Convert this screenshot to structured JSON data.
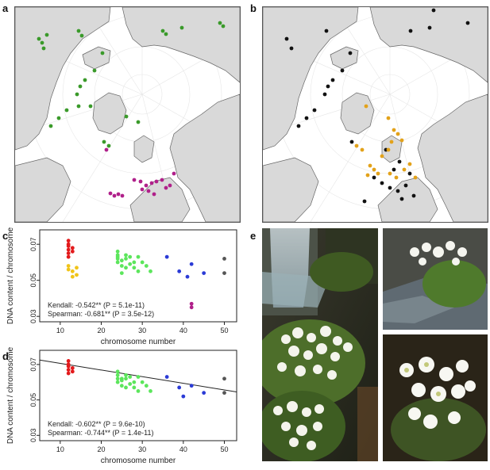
{
  "panels": {
    "a": "a",
    "b": "b",
    "c": "c",
    "d": "d",
    "e": "e"
  },
  "colors": {
    "land": "#d9d9d9",
    "ocean": "#ffffff",
    "green_points": "#3a9a2a",
    "magenta_points": "#b0208a",
    "black_points": "#111111",
    "orange_points": "#e3a21a",
    "red": "#e31a1c",
    "yellow": "#f0c419",
    "lime": "#5ce65c",
    "blue": "#2b3bd6",
    "grey": "#555555"
  },
  "chart_data": [
    {
      "panel": "c",
      "type": "scatter",
      "xlabel": "chromosome number",
      "ylabel": "DNA content / chromosome",
      "xlim": [
        5,
        53
      ],
      "ylim": [
        0.027,
        0.078
      ],
      "xticks": [
        "10",
        "20",
        "30",
        "40",
        "50"
      ],
      "yticks": [
        "0.03",
        "0.05",
        "0.07"
      ],
      "series": [
        {
          "color": "#e31a1c",
          "points": [
            [
              12,
              0.072
            ],
            [
              12,
              0.069
            ],
            [
              12,
              0.067
            ],
            [
              12,
              0.065
            ],
            [
              12,
              0.063
            ],
            [
              13,
              0.068
            ],
            [
              13,
              0.066
            ],
            [
              12,
              0.07
            ]
          ]
        },
        {
          "color": "#f0c419",
          "points": [
            [
              12,
              0.058
            ],
            [
              13,
              0.055
            ],
            [
              13,
              0.052
            ],
            [
              12,
              0.056
            ],
            [
              14,
              0.053
            ],
            [
              14,
              0.057
            ]
          ]
        },
        {
          "color": "#5ce65c",
          "points": [
            [
              24,
              0.066
            ],
            [
              24,
              0.064
            ],
            [
              24,
              0.062
            ],
            [
              25,
              0.061
            ],
            [
              26,
              0.064
            ],
            [
              26,
              0.062
            ],
            [
              27,
              0.063
            ],
            [
              28,
              0.06
            ],
            [
              29,
              0.063
            ],
            [
              24,
              0.06
            ],
            [
              25,
              0.058
            ],
            [
              26,
              0.057
            ],
            [
              27,
              0.059
            ],
            [
              28,
              0.057
            ],
            [
              30,
              0.06
            ],
            [
              31,
              0.058
            ],
            [
              32,
              0.055
            ],
            [
              29,
              0.055
            ],
            [
              25,
              0.054
            ],
            [
              24,
              0.063
            ]
          ]
        },
        {
          "color": "#2b3bd6",
          "points": [
            [
              36,
              0.063
            ],
            [
              39,
              0.055
            ],
            [
              41,
              0.052
            ],
            [
              42,
              0.059
            ],
            [
              45,
              0.054
            ]
          ]
        },
        {
          "color": "#555555",
          "points": [
            [
              50,
              0.062
            ],
            [
              50,
              0.054
            ]
          ]
        },
        {
          "color": "#b0208a",
          "points": [
            [
              42,
              0.037
            ],
            [
              42,
              0.035
            ]
          ]
        }
      ],
      "annotations": [
        "Kendall: -0.542** (P = 5.1e-11)",
        "Spearman: -0.681** (P = 3.5e-12)"
      ],
      "trendline": false
    },
    {
      "panel": "d",
      "type": "scatter",
      "xlabel": "chromosome number",
      "ylabel": "DNA content / chromosome",
      "xlim": [
        5,
        53
      ],
      "ylim": [
        0.027,
        0.078
      ],
      "xticks": [
        "10",
        "20",
        "30",
        "40",
        "50"
      ],
      "yticks": [
        "0.03",
        "0.05",
        "0.07"
      ],
      "series": [
        {
          "color": "#e31a1c",
          "points": [
            [
              12,
              0.072
            ],
            [
              12,
              0.069
            ],
            [
              12,
              0.067
            ],
            [
              12,
              0.065
            ],
            [
              13,
              0.068
            ],
            [
              13,
              0.066
            ],
            [
              12,
              0.07
            ]
          ]
        },
        {
          "color": "#5ce65c",
          "points": [
            [
              24,
              0.066
            ],
            [
              24,
              0.064
            ],
            [
              24,
              0.062
            ],
            [
              25,
              0.061
            ],
            [
              26,
              0.064
            ],
            [
              26,
              0.062
            ],
            [
              27,
              0.063
            ],
            [
              28,
              0.06
            ],
            [
              29,
              0.063
            ],
            [
              24,
              0.06
            ],
            [
              25,
              0.058
            ],
            [
              26,
              0.057
            ],
            [
              27,
              0.059
            ],
            [
              28,
              0.057
            ],
            [
              30,
              0.06
            ],
            [
              31,
              0.058
            ],
            [
              32,
              0.055
            ],
            [
              29,
              0.055
            ],
            [
              25,
              0.062
            ]
          ]
        },
        {
          "color": "#2b3bd6",
          "points": [
            [
              36,
              0.063
            ],
            [
              39,
              0.057
            ],
            [
              40,
              0.052
            ],
            [
              42,
              0.058
            ],
            [
              45,
              0.054
            ]
          ]
        },
        {
          "color": "#555555",
          "points": [
            [
              50,
              0.062
            ],
            [
              50,
              0.054
            ]
          ]
        }
      ],
      "annotations": [
        "Kendall: -0.602** (P = 9.6e-10)",
        "Spearman: -0.744** (P = 1.4e-11)"
      ],
      "trendline": {
        "x0": 5,
        "y0": 0.0725,
        "x1": 53,
        "y1": 0.0545
      }
    }
  ]
}
